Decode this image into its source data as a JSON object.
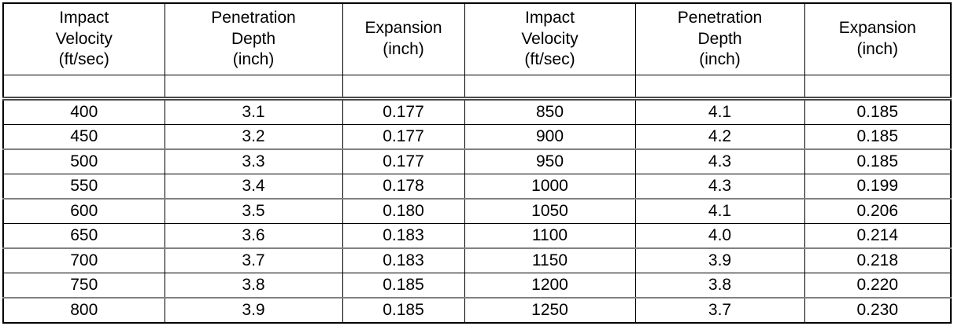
{
  "colors": {
    "background": "#ffffff",
    "text": "#000000",
    "border_black": "#000000",
    "border_gray": "#808080"
  },
  "table": {
    "headers": [
      "Impact\nVelocity\n(ft/sec)",
      "Penetration\nDepth\n(inch)",
      "Expansion\n(inch)",
      "Impact\nVelocity\n(ft/sec)",
      "Penetration\nDepth\n(inch)",
      "Expansion\n(inch)"
    ],
    "rows": [
      [
        "400",
        "3.1",
        "0.177",
        "850",
        "4.1",
        "0.185"
      ],
      [
        "450",
        "3.2",
        "0.177",
        "900",
        "4.2",
        "0.185"
      ],
      [
        "500",
        "3.3",
        "0.177",
        "950",
        "4.3",
        "0.185"
      ],
      [
        "550",
        "3.4",
        "0.178",
        "1000",
        "4.3",
        "0.199"
      ],
      [
        "600",
        "3.5",
        "0.180",
        "1050",
        "4.1",
        "0.206"
      ],
      [
        "650",
        "3.6",
        "0.183",
        "1100",
        "4.0",
        "0.214"
      ],
      [
        "700",
        "3.7",
        "0.183",
        "1150",
        "3.9",
        "0.218"
      ],
      [
        "750",
        "3.8",
        "0.185",
        "1200",
        "3.8",
        "0.220"
      ],
      [
        "800",
        "3.9",
        "0.185",
        "1250",
        "3.7",
        "0.230"
      ]
    ]
  },
  "chart_data": {
    "type": "table",
    "columns": [
      "Impact Velocity (ft/sec)",
      "Penetration Depth (inch)",
      "Expansion (inch)",
      "Impact Velocity (ft/sec)",
      "Penetration Depth (inch)",
      "Expansion (inch)"
    ],
    "rows": [
      [
        400,
        3.1,
        0.177,
        850,
        4.1,
        0.185
      ],
      [
        450,
        3.2,
        0.177,
        900,
        4.2,
        0.185
      ],
      [
        500,
        3.3,
        0.177,
        950,
        4.3,
        0.185
      ],
      [
        550,
        3.4,
        0.178,
        1000,
        4.3,
        0.199
      ],
      [
        600,
        3.5,
        0.18,
        1050,
        4.1,
        0.206
      ],
      [
        650,
        3.6,
        0.183,
        1100,
        4.0,
        0.214
      ],
      [
        700,
        3.7,
        0.183,
        1150,
        3.9,
        0.218
      ],
      [
        750,
        3.8,
        0.185,
        1200,
        3.8,
        0.22
      ],
      [
        800,
        3.9,
        0.185,
        1250,
        3.7,
        0.23
      ]
    ],
    "series": [
      {
        "name": "Penetration Depth (inch)",
        "x": [
          400,
          450,
          500,
          550,
          600,
          650,
          700,
          750,
          800,
          850,
          900,
          950,
          1000,
          1050,
          1100,
          1150,
          1200,
          1250
        ],
        "values": [
          3.1,
          3.2,
          3.3,
          3.4,
          3.5,
          3.6,
          3.7,
          3.8,
          3.9,
          4.1,
          4.2,
          4.3,
          4.3,
          4.1,
          4.0,
          3.9,
          3.8,
          3.7
        ]
      },
      {
        "name": "Expansion (inch)",
        "x": [
          400,
          450,
          500,
          550,
          600,
          650,
          700,
          750,
          800,
          850,
          900,
          950,
          1000,
          1050,
          1100,
          1150,
          1200,
          1250
        ],
        "values": [
          0.177,
          0.177,
          0.177,
          0.178,
          0.18,
          0.183,
          0.183,
          0.185,
          0.185,
          0.185,
          0.185,
          0.185,
          0.199,
          0.206,
          0.214,
          0.218,
          0.22,
          0.23
        ]
      }
    ],
    "xlabel": "Impact Velocity (ft/sec)",
    "x_range": [
      400,
      1250
    ]
  }
}
